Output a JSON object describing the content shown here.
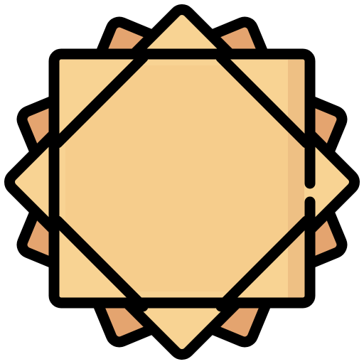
{
  "icon": {
    "name": "star-of-squares-icon",
    "colors": {
      "outline": "#000000",
      "back_square_fill": "#E4A46F",
      "back_square_shadow": "#D68D5B",
      "diamond_fill": "#F8D393",
      "diamond_shadow": "#EEC084",
      "front_square_fill": "#F8D393",
      "front_square_highlight": "#FCE4B4",
      "front_square_shadow": "#EEC084"
    }
  }
}
